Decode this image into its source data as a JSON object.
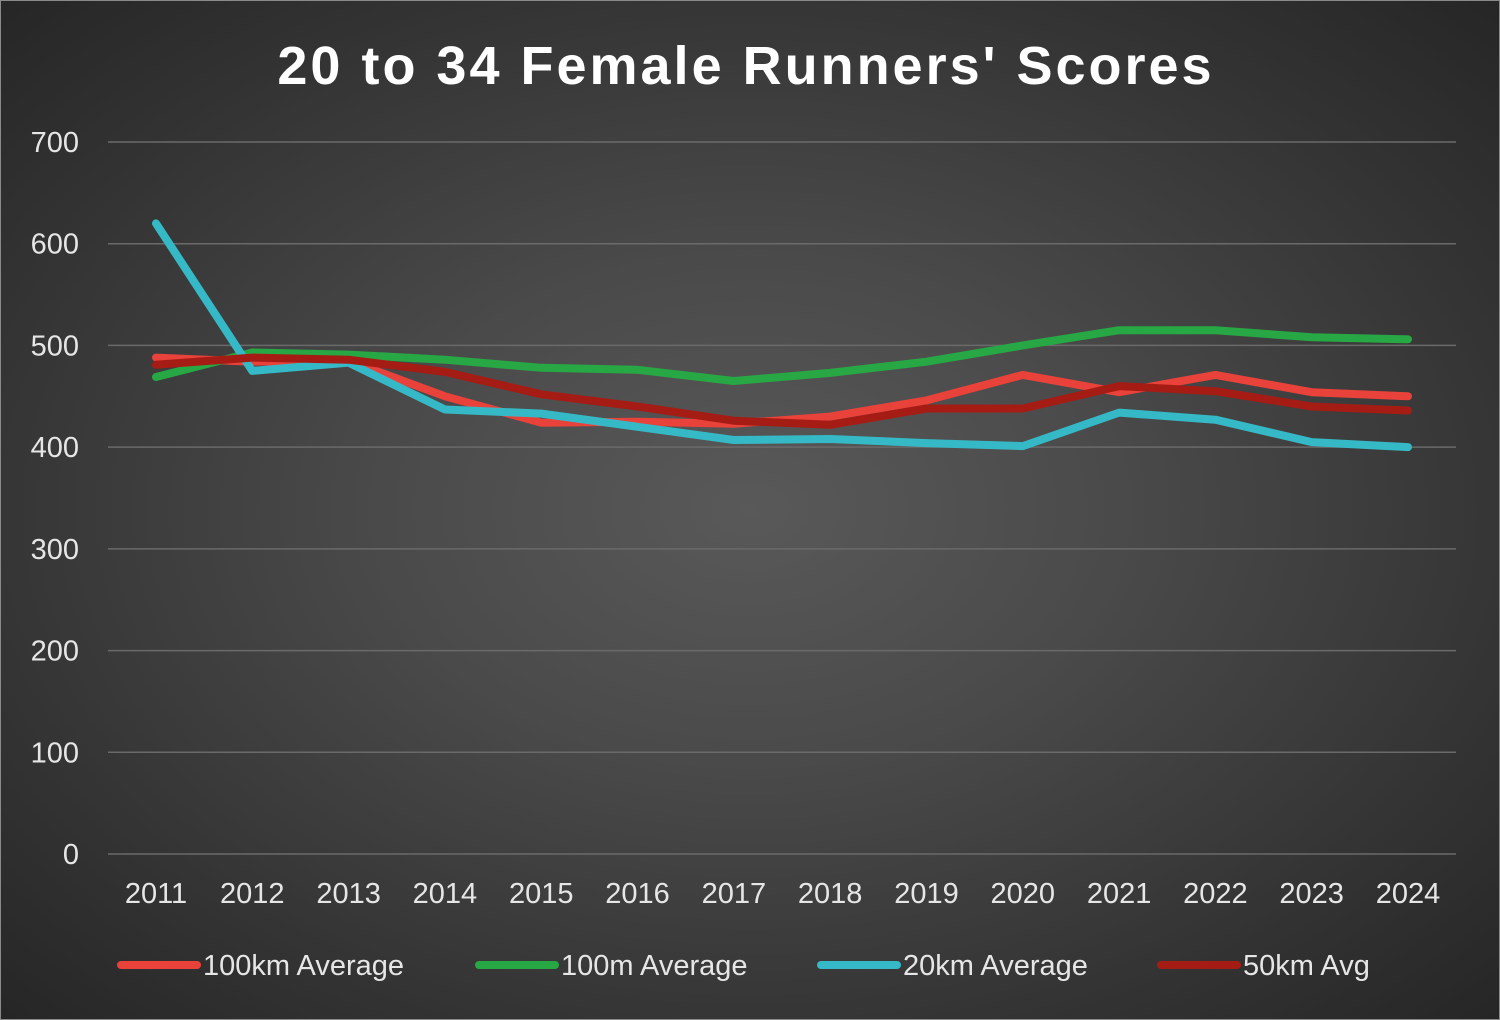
{
  "chart_data": {
    "type": "line",
    "title": "20 to 34 Female Runners' Scores",
    "xlabel": "",
    "ylabel": "",
    "ylim": [
      0,
      700
    ],
    "y_ticks": [
      0,
      100,
      200,
      300,
      400,
      500,
      600,
      700
    ],
    "grid": true,
    "legend_position": "bottom",
    "categories": [
      "2011",
      "2012",
      "2013",
      "2014",
      "2015",
      "2016",
      "2017",
      "2018",
      "2019",
      "2020",
      "2021",
      "2022",
      "2023",
      "2024"
    ],
    "series": [
      {
        "name": "100km Average",
        "color": "#e8423a",
        "values": [
          488,
          484,
          485,
          450,
          424,
          425,
          423,
          430,
          446,
          471,
          454,
          471,
          454,
          450
        ]
      },
      {
        "name": "100m Average",
        "color": "#28a745",
        "values": [
          469,
          493,
          491,
          486,
          478,
          476,
          465,
          473,
          484,
          500,
          515,
          515,
          508,
          506
        ]
      },
      {
        "name": "20km Average",
        "color": "#36b9c6",
        "values": [
          620,
          475,
          483,
          437,
          433,
          420,
          407,
          408,
          404,
          401,
          434,
          427,
          405,
          400
        ]
      },
      {
        "name": "50km Avg",
        "color": "#a51c14",
        "values": [
          481,
          488,
          486,
          474,
          452,
          440,
          426,
          422,
          438,
          438,
          460,
          455,
          440,
          436
        ]
      }
    ]
  }
}
